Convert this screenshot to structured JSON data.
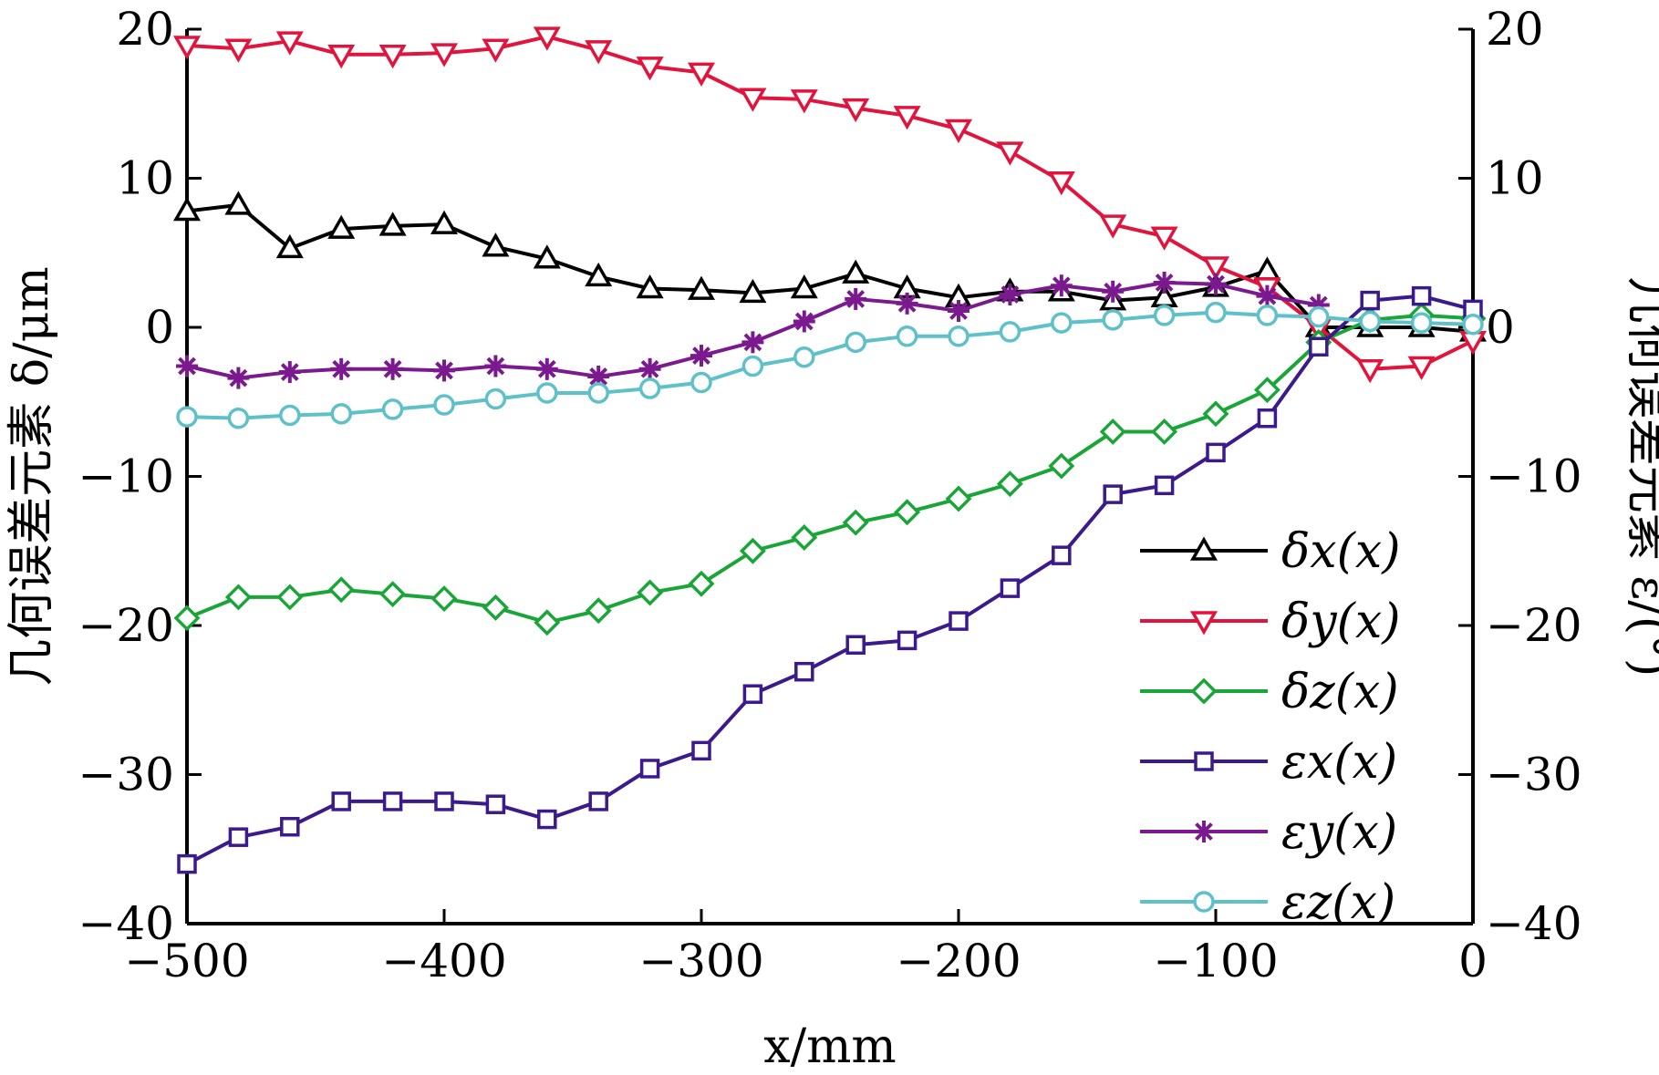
{
  "chart_data": {
    "type": "line",
    "xlabel": "x/mm",
    "ylabel": "几何误差元素 δ/μm",
    "y2label": "几何误差元素 ε/(°)",
    "xlim": [
      -500,
      0
    ],
    "ylim": [
      -40,
      20
    ],
    "y2lim": [
      -40,
      20
    ],
    "x_ticks": [
      -500,
      -400,
      -300,
      -200,
      -100,
      0
    ],
    "x_tick_labels": [
      "−500",
      "−400",
      "−300",
      "−200",
      "−100",
      "0"
    ],
    "y_ticks": [
      -40,
      -30,
      -20,
      -10,
      0,
      10,
      20
    ],
    "y_tick_labels": [
      "−40",
      "−30",
      "−20",
      "−10",
      "0",
      "10",
      "20"
    ],
    "y2_ticks": [
      -40,
      -30,
      -20,
      -10,
      0,
      10,
      20
    ],
    "y2_tick_labels": [
      "−40",
      "−30",
      "−20",
      "−10",
      "0",
      "10",
      "20"
    ],
    "grid": false,
    "legend_position": "right-middle",
    "x": [
      -500,
      -480,
      -460,
      -440,
      -420,
      -400,
      -380,
      -360,
      -340,
      -320,
      -300,
      -280,
      -260,
      -240,
      -220,
      -200,
      -180,
      -160,
      -140,
      -120,
      -100,
      -80,
      -60,
      -40,
      -20,
      0
    ],
    "series": [
      {
        "name": "δx(x)",
        "axis": "left",
        "color": "#000000",
        "marker": "triangle-up",
        "values": [
          7.8,
          8.2,
          5.3,
          6.6,
          6.8,
          6.9,
          5.4,
          4.6,
          3.4,
          2.6,
          2.5,
          2.3,
          2.6,
          3.6,
          2.6,
          2.0,
          2.4,
          2.4,
          1.8,
          2.0,
          2.7,
          3.8,
          0.0,
          0.0,
          0.0,
          -0.3
        ]
      },
      {
        "name": "δy(x)",
        "axis": "left",
        "color": "#e0143c",
        "marker": "triangle-down",
        "values": [
          18.9,
          18.7,
          19.2,
          18.3,
          18.3,
          18.4,
          18.7,
          19.5,
          18.6,
          17.5,
          17.1,
          15.4,
          15.3,
          14.7,
          14.2,
          13.3,
          11.8,
          9.8,
          6.9,
          6.1,
          4.1,
          2.7,
          0.0,
          -2.8,
          -2.6,
          -0.9
        ]
      },
      {
        "name": "δz(x)",
        "axis": "left",
        "color": "#1aa538",
        "marker": "diamond",
        "values": [
          -19.5,
          -18.1,
          -18.1,
          -17.6,
          -17.9,
          -18.2,
          -18.8,
          -19.8,
          -19.0,
          -17.8,
          -17.2,
          -15.0,
          -14.1,
          -13.1,
          -12.4,
          -11.5,
          -10.5,
          -9.3,
          -7.0,
          -7.0,
          -5.8,
          -4.2,
          -1.0,
          0.5,
          0.8,
          0.6
        ]
      },
      {
        "name": "εx(x)",
        "axis": "right",
        "color": "#3b1a8c",
        "marker": "square",
        "values": [
          -36.0,
          -34.2,
          -33.5,
          -31.8,
          -31.8,
          -31.8,
          -32.0,
          -33.0,
          -31.8,
          -29.6,
          -28.4,
          -24.6,
          -23.1,
          -21.3,
          -21.0,
          -19.7,
          -17.5,
          -15.3,
          -11.2,
          -10.6,
          -8.4,
          -6.1,
          -1.3,
          1.8,
          2.1,
          1.2
        ]
      },
      {
        "name": "εy(x)",
        "axis": "right",
        "color": "#7b1a8f",
        "marker": "asterisk",
        "values": [
          -2.6,
          -3.4,
          -3.0,
          -2.8,
          -2.8,
          -2.9,
          -2.6,
          -2.8,
          -3.3,
          -2.8,
          -1.9,
          -1.0,
          0.4,
          1.9,
          1.6,
          1.1,
          2.2,
          2.8,
          2.4,
          3.0,
          2.9,
          2.1,
          1.5,
          null,
          null,
          null
        ]
      },
      {
        "name": "εz(x)",
        "axis": "right",
        "color": "#5ec0c8",
        "marker": "circle",
        "values": [
          -6.0,
          -6.1,
          -5.9,
          -5.8,
          -5.5,
          -5.2,
          -4.8,
          -4.4,
          -4.4,
          -4.1,
          -3.7,
          -2.6,
          -2.0,
          -1.0,
          -0.6,
          -0.6,
          -0.3,
          0.3,
          0.5,
          0.8,
          1.0,
          0.8,
          0.7,
          0.4,
          0.3,
          0.2
        ]
      }
    ]
  }
}
